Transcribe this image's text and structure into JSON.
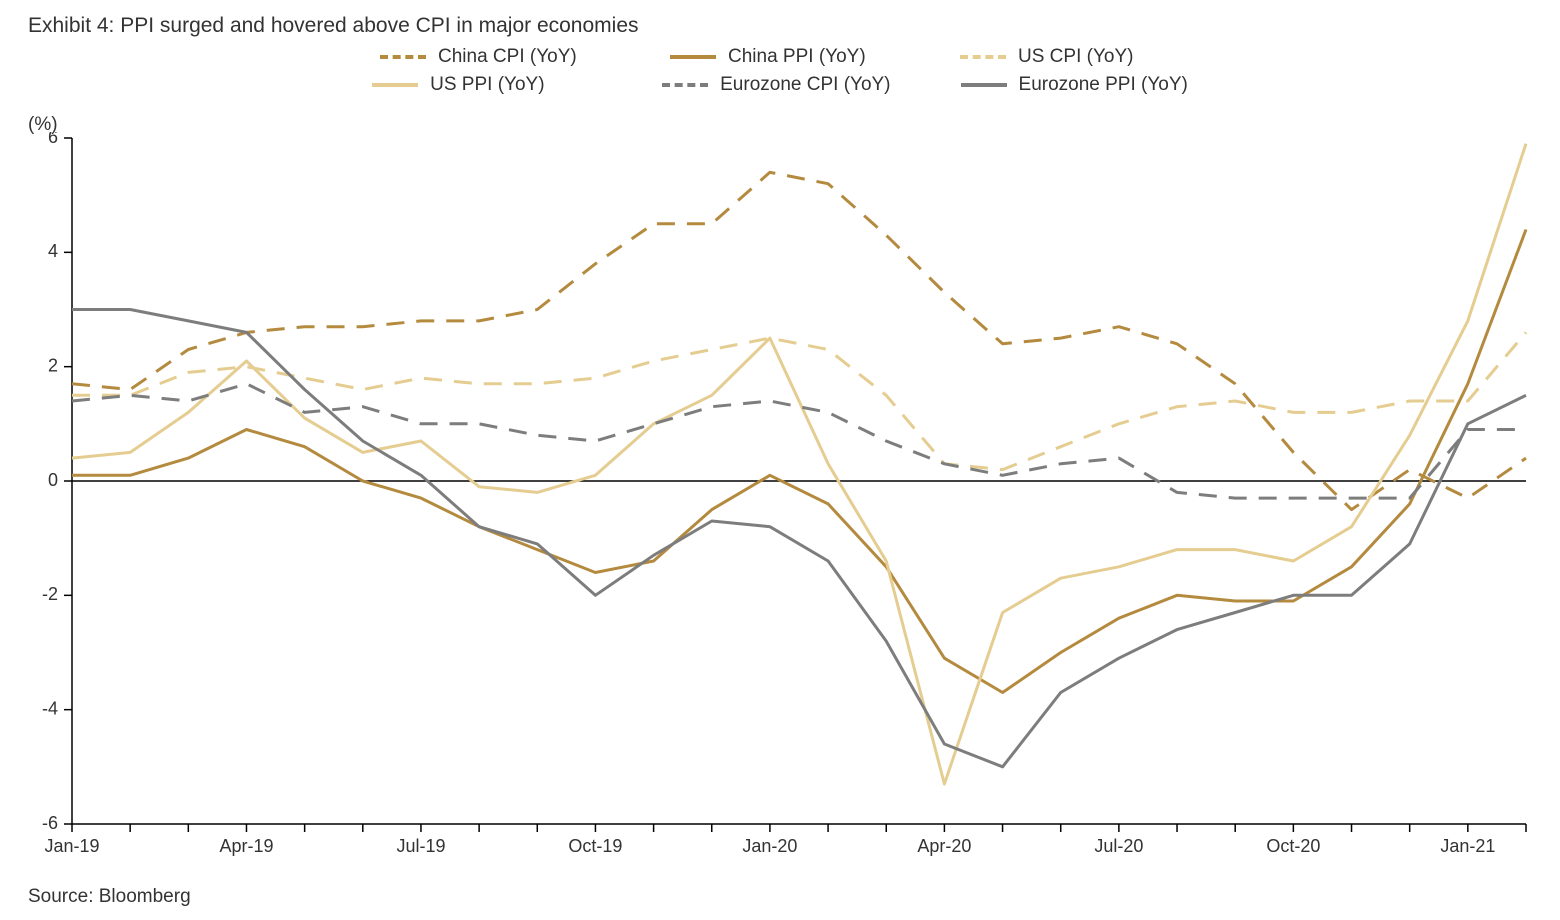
{
  "title": "Exhibit 4: PPI surged and hovered above CPI in major economies",
  "ylabel": "(%)",
  "source": "Source: Bloomberg",
  "chart": {
    "type": "line",
    "background_color": "#ffffff",
    "axis_color": "#000000",
    "axis_width": 1.5,
    "tick_length": 8,
    "ylim": [
      -6,
      6
    ],
    "ytick_step": 2,
    "yticks": [
      -6,
      -4,
      -2,
      0,
      2,
      4,
      6
    ],
    "x_count": 26,
    "x_tick_indices": [
      0,
      3,
      6,
      9,
      12,
      15,
      18,
      21,
      24
    ],
    "x_tick_labels": [
      "Jan-19",
      "Apr-19",
      "Jul-19",
      "Oct-19",
      "Jan-20",
      "Apr-20",
      "Jul-20",
      "Oct-20",
      "Jan-21"
    ],
    "series": [
      {
        "name": "China CPI (YoY)",
        "color": "#b48a3f",
        "dashed": true,
        "width": 3,
        "values": [
          1.7,
          1.6,
          2.3,
          2.6,
          2.7,
          2.7,
          2.8,
          2.8,
          3.0,
          3.8,
          4.5,
          4.5,
          5.4,
          5.2,
          4.3,
          3.3,
          2.4,
          2.5,
          2.7,
          2.4,
          1.7,
          0.5,
          -0.5,
          0.2,
          -0.3,
          0.4
        ]
      },
      {
        "name": "China PPI (YoY)",
        "color": "#b48a3f",
        "dashed": false,
        "width": 3,
        "values": [
          0.1,
          0.1,
          0.4,
          0.9,
          0.6,
          0.0,
          -0.3,
          -0.8,
          -1.2,
          -1.6,
          -1.4,
          -0.5,
          0.1,
          -0.4,
          -1.5,
          -3.1,
          -3.7,
          -3.0,
          -2.4,
          -2.0,
          -2.1,
          -2.1,
          -1.5,
          -0.4,
          1.7,
          4.4
        ]
      },
      {
        "name": "US CPI (YoY)",
        "color": "#e5cd91",
        "dashed": true,
        "width": 3,
        "values": [
          1.5,
          1.5,
          1.9,
          2.0,
          1.8,
          1.6,
          1.8,
          1.7,
          1.7,
          1.8,
          2.1,
          2.3,
          2.5,
          2.3,
          1.5,
          0.3,
          0.2,
          0.6,
          1.0,
          1.3,
          1.4,
          1.2,
          1.2,
          1.4,
          1.4,
          2.6
        ]
      },
      {
        "name": "US PPI (YoY)",
        "color": "#e5cd91",
        "dashed": false,
        "width": 3,
        "values": [
          0.4,
          0.5,
          1.2,
          2.1,
          1.1,
          0.5,
          0.7,
          -0.1,
          -0.2,
          0.1,
          1.0,
          1.5,
          2.5,
          0.3,
          -1.4,
          -5.3,
          -2.3,
          -1.7,
          -1.5,
          -1.2,
          -1.2,
          -1.4,
          -0.8,
          0.8,
          2.8,
          5.9
        ]
      },
      {
        "name": "Eurozone CPI (YoY)",
        "color": "#7d7d7d",
        "dashed": true,
        "width": 3,
        "values": [
          1.4,
          1.5,
          1.4,
          1.7,
          1.2,
          1.3,
          1.0,
          1.0,
          0.8,
          0.7,
          1.0,
          1.3,
          1.4,
          1.2,
          0.7,
          0.3,
          0.1,
          0.3,
          0.4,
          -0.2,
          -0.3,
          -0.3,
          -0.3,
          -0.3,
          0.9,
          0.9
        ]
      },
      {
        "name": "Eurozone PPI (YoY)",
        "color": "#7d7d7d",
        "dashed": false,
        "width": 3,
        "values": [
          3.0,
          3.0,
          2.8,
          2.6,
          1.6,
          0.7,
          0.1,
          -0.8,
          -1.1,
          -2.0,
          -1.3,
          -0.7,
          -0.8,
          -1.4,
          -2.8,
          -4.6,
          -5.0,
          -3.7,
          -3.1,
          -2.6,
          -2.3,
          -2.0,
          -2.0,
          -1.1,
          1.0,
          1.5
        ]
      }
    ],
    "legend_rows": [
      [
        "China CPI (YoY)",
        "China PPI (YoY)",
        "US CPI (YoY)"
      ],
      [
        "US PPI (YoY)",
        "Eurozone CPI (YoY)",
        "Eurozone PPI (YoY)"
      ]
    ],
    "label_fontsize": 18,
    "title_fontsize": 21,
    "legend_fontsize": 19
  }
}
